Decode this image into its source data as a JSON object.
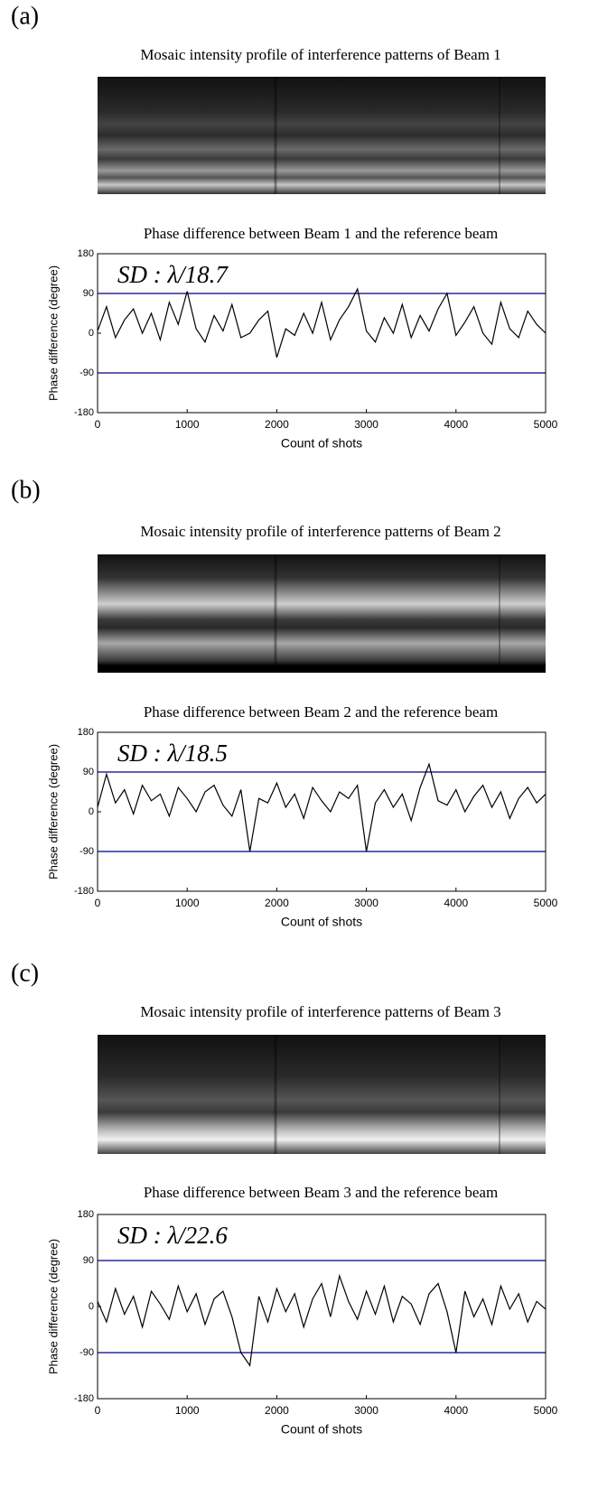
{
  "panels": [
    {
      "label": "(a)",
      "image_title": "Mosaic intensity profile of interference patterns of Beam 1"
    },
    {
      "label": "(b)",
      "image_title": "Mosaic intensity profile of interference patterns of Beam 2"
    },
    {
      "label": "(c)",
      "image_title": "Mosaic intensity profile of interference patterns of Beam 3"
    }
  ],
  "chart_data": [
    {
      "type": "line",
      "title": "Phase difference between Beam 1 and the reference beam",
      "annotation": "SD : λ/18.7",
      "xlabel": "Count of shots",
      "ylabel": "Phase difference (degree)",
      "color": "#000000",
      "x": [
        0,
        100,
        200,
        300,
        400,
        500,
        600,
        700,
        800,
        900,
        1000,
        1100,
        1200,
        1300,
        1400,
        1500,
        1600,
        1700,
        1800,
        1900,
        2000,
        2100,
        2200,
        2300,
        2400,
        2500,
        2600,
        2700,
        2800,
        2900,
        3000,
        3100,
        3200,
        3300,
        3400,
        3500,
        3600,
        3700,
        3800,
        3900,
        4000,
        4100,
        4200,
        4300,
        4400,
        4500,
        4600,
        4700,
        4800,
        4900,
        5000
      ],
      "values": [
        5,
        60,
        -10,
        30,
        55,
        0,
        45,
        -15,
        70,
        20,
        95,
        10,
        -20,
        40,
        5,
        65,
        -10,
        0,
        30,
        50,
        -55,
        10,
        -5,
        45,
        0,
        70,
        -15,
        30,
        60,
        100,
        5,
        -20,
        35,
        0,
        65,
        -10,
        40,
        5,
        55,
        90,
        -5,
        25,
        60,
        0,
        -25,
        70,
        10,
        -10,
        50,
        20,
        0
      ],
      "xlim": [
        0,
        5000
      ],
      "xticks": [
        0,
        1000,
        2000,
        3000,
        4000,
        5000
      ],
      "ylim": [
        -180,
        180
      ],
      "yticks": [
        -180,
        -90,
        0,
        90,
        180
      ],
      "reference_lines": {
        "values": [
          90,
          -90
        ],
        "color": "#2a2a9a"
      }
    },
    {
      "type": "line",
      "title": "Phase difference between Beam 2 and the reference beam",
      "annotation": "SD : λ/18.5",
      "xlabel": "Count of shots",
      "ylabel": "Phase difference (degree)",
      "color": "#000000",
      "x": [
        0,
        100,
        200,
        300,
        400,
        500,
        600,
        700,
        800,
        900,
        1000,
        1100,
        1200,
        1300,
        1400,
        1500,
        1600,
        1700,
        1800,
        1900,
        2000,
        2100,
        2200,
        2300,
        2400,
        2500,
        2600,
        2700,
        2800,
        2900,
        3000,
        3100,
        3200,
        3300,
        3400,
        3500,
        3600,
        3700,
        3800,
        3900,
        4000,
        4100,
        4200,
        4300,
        4400,
        4500,
        4600,
        4700,
        4800,
        4900,
        5000
      ],
      "values": [
        10,
        85,
        20,
        50,
        -5,
        60,
        25,
        40,
        -10,
        55,
        30,
        0,
        45,
        60,
        15,
        -10,
        50,
        -90,
        30,
        20,
        65,
        10,
        40,
        -15,
        55,
        25,
        0,
        45,
        30,
        60,
        -90,
        20,
        50,
        10,
        40,
        -20,
        55,
        108,
        25,
        15,
        50,
        0,
        35,
        60,
        10,
        45,
        -15,
        30,
        55,
        20,
        40
      ],
      "xlim": [
        0,
        5000
      ],
      "xticks": [
        0,
        1000,
        2000,
        3000,
        4000,
        5000
      ],
      "ylim": [
        -180,
        180
      ],
      "yticks": [
        -180,
        -90,
        0,
        90,
        180
      ],
      "reference_lines": {
        "values": [
          90,
          -90
        ],
        "color": "#2a2a9a"
      }
    },
    {
      "type": "line",
      "title": "Phase difference between Beam 3 and the reference beam",
      "annotation": "SD : λ/22.6",
      "xlabel": "Count of shots",
      "ylabel": "Phase difference (degree)",
      "color": "#000000",
      "x": [
        0,
        100,
        200,
        300,
        400,
        500,
        600,
        700,
        800,
        900,
        1000,
        1100,
        1200,
        1300,
        1400,
        1500,
        1600,
        1700,
        1800,
        1900,
        2000,
        2100,
        2200,
        2300,
        2400,
        2500,
        2600,
        2700,
        2800,
        2900,
        3000,
        3100,
        3200,
        3300,
        3400,
        3500,
        3600,
        3700,
        3800,
        3900,
        4000,
        4100,
        4200,
        4300,
        4400,
        4500,
        4600,
        4700,
        4800,
        4900,
        5000
      ],
      "values": [
        10,
        -30,
        35,
        -15,
        20,
        -40,
        30,
        5,
        -25,
        40,
        -10,
        25,
        -35,
        15,
        30,
        -20,
        -90,
        -115,
        20,
        -30,
        35,
        -10,
        25,
        -40,
        15,
        45,
        -20,
        60,
        10,
        -25,
        30,
        -15,
        40,
        -30,
        20,
        5,
        -35,
        25,
        45,
        -10,
        -90,
        30,
        -20,
        15,
        -35,
        40,
        -5,
        25,
        -30,
        10,
        -5
      ],
      "xlim": [
        0,
        5000
      ],
      "xticks": [
        0,
        1000,
        2000,
        3000,
        4000,
        5000
      ],
      "ylim": [
        -180,
        180
      ],
      "yticks": [
        -180,
        -90,
        0,
        90,
        180
      ],
      "reference_lines": {
        "values": [
          90,
          -90
        ],
        "color": "#2a2a9a"
      }
    }
  ]
}
